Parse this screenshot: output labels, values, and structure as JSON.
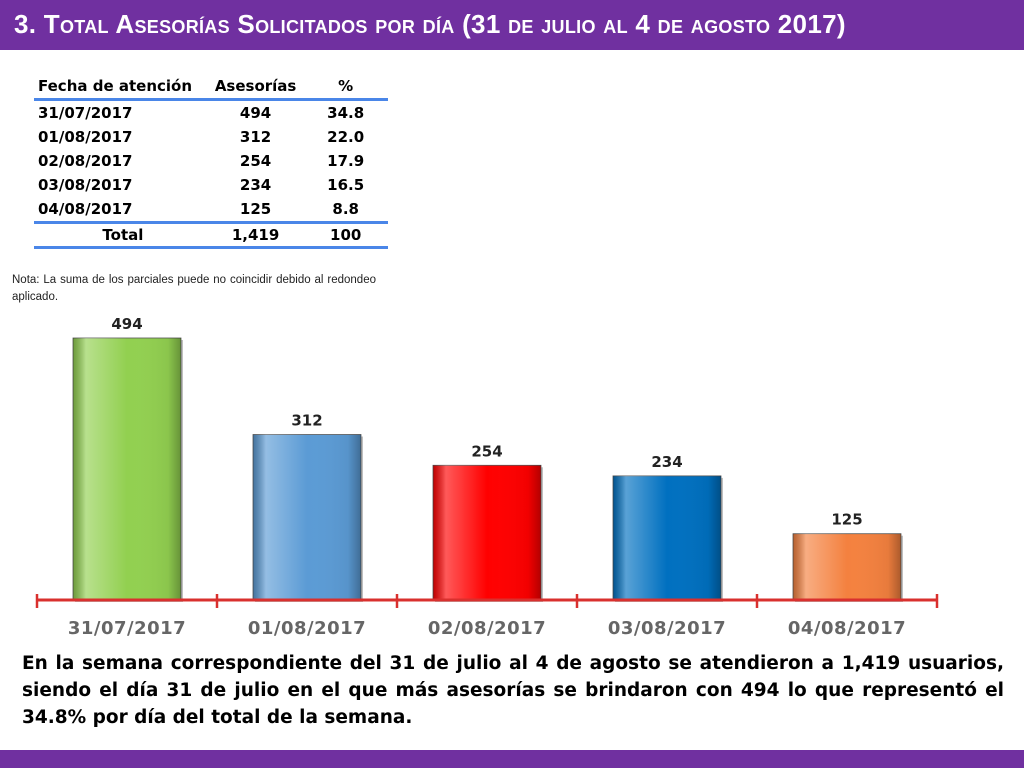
{
  "header": {
    "title": "3.  Total Asesorías Solicitados por día  (31 de julio al 4 de agosto 2017)"
  },
  "table": {
    "headers": [
      "Fecha de atención",
      "Asesorías",
      "%"
    ],
    "rows": [
      [
        "31/07/2017",
        "494",
        "34.8"
      ],
      [
        "01/08/2017",
        "312",
        "22.0"
      ],
      [
        "02/08/2017",
        "254",
        "17.9"
      ],
      [
        "03/08/2017",
        "234",
        "16.5"
      ],
      [
        "04/08/2017",
        "125",
        "8.8"
      ]
    ],
    "total": [
      "Total",
      "1,419",
      "100"
    ]
  },
  "note": "Nota: La suma de los parciales puede no coincidir debido al redondeo aplicado.",
  "chart_data": {
    "type": "bar",
    "categories": [
      "31/07/2017",
      "01/08/2017",
      "02/08/2017",
      "03/08/2017",
      "04/08/2017"
    ],
    "values": [
      494,
      312,
      254,
      234,
      125
    ],
    "colors": [
      "#92d050",
      "#5b9bd5",
      "#ff0000",
      "#0070c0",
      "#f4813f"
    ],
    "axis_color": "#d9302e",
    "ylim": [
      0,
      494
    ],
    "grid": false
  },
  "summary": "En la semana correspondiente del 31 de julio al 4 de agosto se atendieron a 1,419 usuarios, siendo el día 31 de julio en el que más asesorías se brindaron con 494 lo que representó el 34.8% por día del total de la semana."
}
